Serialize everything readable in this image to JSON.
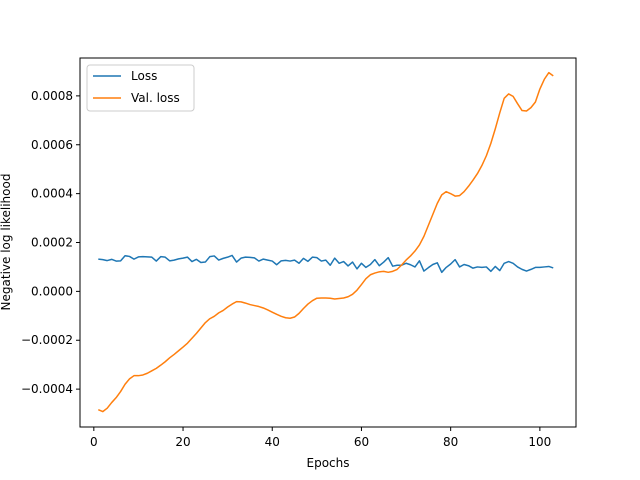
{
  "chart_data": {
    "type": "line",
    "title": "",
    "xlabel": "Epochs",
    "ylabel": "Negative log likelihood",
    "xlim": [
      -3.1,
      108.1
    ],
    "ylim": [
      -0.000555,
      0.000955
    ],
    "xticks": [
      0,
      20,
      40,
      60,
      80,
      100
    ],
    "xtick_labels": [
      "0",
      "20",
      "40",
      "60",
      "80",
      "100"
    ],
    "yticks": [
      -0.0004,
      -0.0002,
      0.0,
      0.0002,
      0.0004,
      0.0006,
      0.0008
    ],
    "ytick_labels": [
      "−0.0004",
      "−0.0002",
      "0.0000",
      "0.0002",
      "0.0004",
      "0.0006",
      "0.0008"
    ],
    "grid": false,
    "legend_position": "top-left",
    "series": [
      {
        "name": "Loss",
        "color": "#1f77b4",
        "x": [
          1,
          2,
          3,
          4,
          5,
          6,
          7,
          8,
          9,
          10,
          11,
          12,
          13,
          14,
          15,
          16,
          17,
          18,
          19,
          20,
          21,
          22,
          23,
          24,
          25,
          26,
          27,
          28,
          29,
          30,
          31,
          32,
          33,
          34,
          35,
          36,
          37,
          38,
          39,
          40,
          41,
          42,
          43,
          44,
          45,
          46,
          47,
          48,
          49,
          50,
          51,
          52,
          53,
          54,
          55,
          56,
          57,
          58,
          59,
          60,
          61,
          62,
          63,
          64,
          65,
          66,
          67,
          68,
          69,
          70,
          71,
          72,
          73,
          74,
          75,
          76,
          77,
          78,
          79,
          80,
          81,
          82,
          83,
          84,
          85,
          86,
          87,
          88,
          89,
          90,
          91,
          92,
          93,
          94,
          95,
          96,
          97,
          98,
          99,
          100,
          101,
          102,
          103
        ],
        "y": [
          0.000132,
          0.00013,
          0.000126,
          0.000131,
          0.000124,
          0.000125,
          0.000146,
          0.000143,
          0.000132,
          0.000141,
          0.000142,
          0.000141,
          0.00014,
          0.000124,
          0.000142,
          0.00014,
          0.000125,
          0.000128,
          0.000133,
          0.000136,
          0.00014,
          0.000122,
          0.000131,
          0.000118,
          0.00012,
          0.000142,
          0.000145,
          0.000128,
          0.000135,
          0.00014,
          0.000147,
          0.00012,
          0.000136,
          0.00014,
          0.000139,
          0.000137,
          0.000124,
          0.000132,
          0.000128,
          0.000124,
          0.000109,
          0.000125,
          0.000127,
          0.000124,
          0.000128,
          0.000115,
          0.000135,
          0.000123,
          0.00014,
          0.000138,
          0.000124,
          0.000128,
          0.000107,
          0.000136,
          0.000115,
          0.000122,
          0.000104,
          0.00012,
          9.2e-05,
          0.000115,
          9.8e-05,
          0.00011,
          0.00013,
          0.000105,
          0.00012,
          0.000138,
          0.000103,
          0.000107,
          0.000107,
          0.000115,
          0.000109,
          0.0001,
          0.000125,
          8.3e-05,
          9.7e-05,
          0.00011,
          0.000117,
          7.8e-05,
          9.8e-05,
          0.000112,
          0.00013,
          0.0001,
          0.00011,
          0.000105,
          9.5e-05,
          0.0001,
          9.8e-05,
          0.0001,
          8.2e-05,
          0.000102,
          8.5e-05,
          0.000115,
          0.000122,
          0.000115,
          0.0001,
          9e-05,
          8.3e-05,
          9e-05,
          9.8e-05,
          9.8e-05,
          0.0001,
          0.000102,
          9.6e-05
        ]
      },
      {
        "name": "Val. loss",
        "color": "#ff7f0e",
        "x": [
          1,
          2,
          3,
          4,
          5,
          6,
          7,
          8,
          9,
          10,
          11,
          12,
          13,
          14,
          15,
          16,
          17,
          18,
          19,
          20,
          21,
          22,
          23,
          24,
          25,
          26,
          27,
          28,
          29,
          30,
          31,
          32,
          33,
          34,
          35,
          36,
          37,
          38,
          39,
          40,
          41,
          42,
          43,
          44,
          45,
          46,
          47,
          48,
          49,
          50,
          51,
          52,
          53,
          54,
          55,
          56,
          57,
          58,
          59,
          60,
          61,
          62,
          63,
          64,
          65,
          66,
          67,
          68,
          69,
          70,
          71,
          72,
          73,
          74,
          75,
          76,
          77,
          78,
          79,
          80,
          81,
          82,
          83,
          84,
          85,
          86,
          87,
          88,
          89,
          90,
          91,
          92,
          93,
          94,
          95,
          96,
          97,
          98,
          99,
          100,
          101,
          102,
          103
        ],
        "y": [
          -0.000484,
          -0.000492,
          -0.000478,
          -0.000455,
          -0.000435,
          -0.00041,
          -0.00038,
          -0.000358,
          -0.000345,
          -0.000345,
          -0.000342,
          -0.000335,
          -0.000325,
          -0.000315,
          -0.000302,
          -0.000288,
          -0.000272,
          -0.000258,
          -0.000243,
          -0.000228,
          -0.000212,
          -0.000192,
          -0.000172,
          -0.00015,
          -0.000128,
          -0.000112,
          -0.000102,
          -8.8e-05,
          -7.8e-05,
          -6.4e-05,
          -5.2e-05,
          -4.2e-05,
          -4.3e-05,
          -4.8e-05,
          -5.4e-05,
          -5.8e-05,
          -6.2e-05,
          -6.8e-05,
          -7.6e-05,
          -8.5e-05,
          -9.4e-05,
          -0.000102,
          -0.000108,
          -0.00011,
          -0.000105,
          -9e-05,
          -7e-05,
          -5.2e-05,
          -3.8e-05,
          -2.8e-05,
          -2.7e-05,
          -2.7e-05,
          -2.8e-05,
          -3.1e-05,
          -2.9e-05,
          -2.7e-05,
          -2.2e-05,
          -1.2e-05,
          5e-06,
          2.8e-05,
          5.2e-05,
          6.8e-05,
          7.5e-05,
          8e-05,
          8.2e-05,
          7.8e-05,
          8.2e-05,
          9e-05,
          0.000108,
          0.000128,
          0.000145,
          0.000165,
          0.00019,
          0.000225,
          0.00027,
          0.000315,
          0.00036,
          0.000395,
          0.000408,
          0.0004,
          0.00039,
          0.000392,
          0.000408,
          0.00043,
          0.000455,
          0.000482,
          0.000515,
          0.000555,
          0.000605,
          0.000665,
          0.00073,
          0.00079,
          0.000808,
          0.000798,
          0.000768,
          0.00074,
          0.000738,
          0.000752,
          0.000775,
          0.000828,
          0.000868,
          0.000895,
          0.000882
        ]
      }
    ]
  }
}
